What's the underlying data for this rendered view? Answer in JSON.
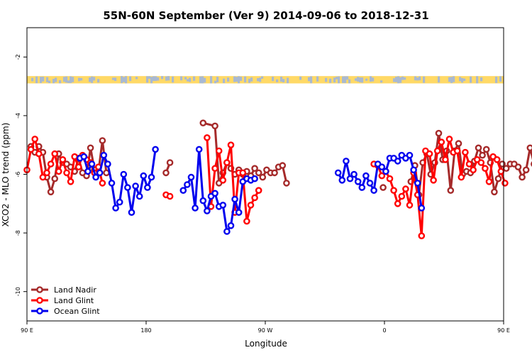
{
  "chart_data": {
    "type": "line",
    "title": "55N-60N September (Ver 9)   2014-09-06 to 2018-12-31",
    "xlabel": "Longitude",
    "ylabel": "XCO2 - MLO trend (ppm)",
    "xlim": [
      90,
      450
    ],
    "ylim": [
      -11,
      -1
    ],
    "x_ticks": [
      {
        "value": 90,
        "label": "90 E"
      },
      {
        "value": 180,
        "label": "180"
      },
      {
        "value": 270,
        "label": "90 W"
      },
      {
        "value": 360,
        "label": "0"
      },
      {
        "value": 450,
        "label": "90 E"
      },
      {
        "value": 540,
        "label": "180"
      }
    ],
    "y_ticks": [
      {
        "value": -2,
        "label": "-2"
      },
      {
        "value": -4,
        "label": "-4"
      },
      {
        "value": -6,
        "label": "-6"
      },
      {
        "value": -8,
        "label": "-8"
      },
      {
        "value": -10,
        "label": "-10"
      }
    ],
    "legend_position": "bottom-left",
    "grid": false,
    "map_strip": {
      "y_top": -2.65,
      "y_bottom": -2.9,
      "land_color": "#ffd966",
      "ocean_color": "#a9b9d1"
    },
    "series": [
      {
        "name": "Land Nadir",
        "color": "#a52a2a",
        "segments": [
          [
            [
              93,
              -5.05
            ],
            [
              96,
              -5.25
            ],
            [
              99,
              -5.05
            ],
            [
              102,
              -5.25
            ],
            [
              105,
              -6.1
            ],
            [
              108,
              -6.6
            ],
            [
              111,
              -6.15
            ],
            [
              114,
              -5.3
            ],
            [
              117,
              -5.6
            ],
            [
              120,
              -5.65
            ],
            [
              123,
              -5.75
            ],
            [
              126,
              -5.9
            ],
            [
              129,
              -5.45
            ],
            [
              132,
              -5.95
            ],
            [
              135,
              -6.05
            ],
            [
              138,
              -5.1
            ],
            [
              141,
              -5.85
            ],
            [
              144,
              -5.9
            ],
            [
              147,
              -4.85
            ],
            [
              150,
              -5.95
            ]
          ],
          [
            [
              195,
              -5.95
            ],
            [
              198,
              -5.6
            ]
          ],
          [
            [
              223,
              -4.25
            ],
            [
              232,
              -4.35
            ],
            [
              235,
              -6.3
            ],
            [
              238,
              -5.95
            ],
            [
              241,
              -5.6
            ],
            [
              244,
              -5.8
            ],
            [
              247,
              -6.0
            ],
            [
              250,
              -5.85
            ],
            [
              253,
              -6.0
            ],
            [
              256,
              -5.9
            ],
            [
              259,
              -6.05
            ],
            [
              262,
              -5.8
            ],
            [
              265,
              -5.95
            ],
            [
              268,
              -6.1
            ],
            [
              271,
              -5.85
            ],
            [
              274,
              -5.95
            ],
            [
              277,
              -5.95
            ],
            [
              280,
              -5.75
            ],
            [
              283,
              -5.7
            ],
            [
              286,
              -6.3
            ]
          ],
          [
            [
              359,
              -6.45
            ]
          ],
          [
            [
              380,
              -6.25
            ],
            [
              383,
              -5.7
            ],
            [
              386,
              -6.7
            ],
            [
              389,
              -5.6
            ],
            [
              392,
              -5.3
            ],
            [
              395,
              -6.0
            ],
            [
              398,
              -5.6
            ],
            [
              401,
              -4.6
            ],
            [
              404,
              -5.5
            ],
            [
              407,
              -5.2
            ],
            [
              410,
              -6.55
            ],
            [
              413,
              -5.2
            ],
            [
              416,
              -4.95
            ],
            [
              419,
              -6.0
            ],
            [
              422,
              -5.9
            ],
            [
              425,
              -5.95
            ],
            [
              428,
              -5.55
            ],
            [
              431,
              -5.1
            ],
            [
              434,
              -5.35
            ],
            [
              437,
              -5.15
            ],
            [
              440,
              -5.6
            ],
            [
              443,
              -6.6
            ],
            [
              446,
              -6.15
            ],
            [
              449,
              -5.65
            ],
            [
              452,
              -5.8
            ],
            [
              455,
              -5.65
            ],
            [
              458,
              -5.65
            ],
            [
              461,
              -5.75
            ],
            [
              464,
              -6.1
            ],
            [
              467,
              -5.85
            ],
            [
              470,
              -5.1
            ],
            [
              473,
              -5.65
            ],
            [
              476,
              -5.95
            ],
            [
              479,
              -4.85
            ],
            [
              482,
              -6.0
            ]
          ]
        ]
      },
      {
        "name": "Land Glint",
        "color": "#ff0000",
        "segments": [
          [
            [
              90,
              -5.85
            ],
            [
              93,
              -5.15
            ],
            [
              96,
              -4.8
            ],
            [
              99,
              -5.3
            ],
            [
              102,
              -6.1
            ],
            [
              105,
              -5.95
            ],
            [
              108,
              -5.65
            ],
            [
              111,
              -5.3
            ],
            [
              114,
              -5.9
            ],
            [
              117,
              -5.5
            ],
            [
              120,
              -5.95
            ],
            [
              123,
              -6.25
            ],
            [
              126,
              -5.4
            ],
            [
              129,
              -5.75
            ],
            [
              132,
              -5.35
            ],
            [
              135,
              -5.5
            ],
            [
              138,
              -5.6
            ],
            [
              141,
              -5.95
            ],
            [
              144,
              -5.75
            ],
            [
              147,
              -6.3
            ]
          ],
          [
            [
              195,
              -6.7
            ],
            [
              198,
              -6.75
            ]
          ],
          [
            [
              226,
              -4.75
            ],
            [
              229,
              -7.1
            ],
            [
              232,
              -5.8
            ],
            [
              235,
              -5.2
            ],
            [
              238,
              -6.2
            ],
            [
              241,
              -5.6
            ],
            [
              244,
              -5.0
            ],
            [
              247,
              -7.3
            ],
            [
              250,
              -5.95
            ],
            [
              253,
              -5.95
            ],
            [
              256,
              -7.6
            ],
            [
              259,
              -7.05
            ],
            [
              262,
              -6.8
            ],
            [
              265,
              -6.55
            ]
          ],
          [
            [
              352,
              -5.65
            ],
            [
              355,
              -5.7
            ],
            [
              358,
              -6.05
            ],
            [
              361,
              -5.9
            ],
            [
              364,
              -6.15
            ],
            [
              367,
              -6.55
            ],
            [
              370,
              -7.0
            ],
            [
              373,
              -6.75
            ],
            [
              376,
              -6.5
            ],
            [
              379,
              -7.05
            ],
            [
              382,
              -5.95
            ],
            [
              385,
              -6.7
            ],
            [
              388,
              -8.1
            ],
            [
              391,
              -5.2
            ],
            [
              394,
              -5.3
            ],
            [
              397,
              -6.2
            ],
            [
              400,
              -5.2
            ],
            [
              403,
              -4.9
            ],
            [
              406,
              -5.5
            ],
            [
              409,
              -4.8
            ],
            [
              412,
              -5.25
            ],
            [
              415,
              -5.2
            ],
            [
              418,
              -6.1
            ],
            [
              421,
              -5.25
            ],
            [
              424,
              -5.65
            ],
            [
              427,
              -5.85
            ],
            [
              430,
              -5.5
            ],
            [
              433,
              -5.6
            ],
            [
              436,
              -5.8
            ],
            [
              439,
              -6.25
            ],
            [
              442,
              -5.4
            ],
            [
              445,
              -5.5
            ],
            [
              448,
              -5.9
            ],
            [
              451,
              -6.3
            ]
          ]
        ]
      },
      {
        "name": "Ocean Glint",
        "color": "#0000ee",
        "segments": [
          [
            [
              130,
              -5.45
            ],
            [
              133,
              -5.4
            ],
            [
              136,
              -5.9
            ],
            [
              139,
              -5.65
            ],
            [
              142,
              -6.1
            ],
            [
              145,
              -5.95
            ],
            [
              148,
              -5.35
            ],
            [
              151,
              -5.65
            ],
            [
              154,
              -6.3
            ],
            [
              157,
              -7.15
            ],
            [
              160,
              -6.95
            ],
            [
              163,
              -6.0
            ],
            [
              166,
              -6.45
            ],
            [
              169,
              -7.3
            ],
            [
              172,
              -6.4
            ],
            [
              175,
              -6.75
            ],
            [
              178,
              -6.05
            ],
            [
              181,
              -6.45
            ],
            [
              184,
              -6.1
            ],
            [
              187,
              -5.15
            ]
          ],
          [
            [
              208,
              -6.55
            ],
            [
              211,
              -6.35
            ],
            [
              214,
              -6.1
            ],
            [
              217,
              -7.15
            ],
            [
              220,
              -5.15
            ],
            [
              223,
              -6.9
            ],
            [
              226,
              -7.25
            ],
            [
              229,
              -6.75
            ],
            [
              232,
              -6.65
            ],
            [
              235,
              -7.1
            ],
            [
              238,
              -7.05
            ],
            [
              241,
              -7.95
            ],
            [
              244,
              -7.75
            ],
            [
              247,
              -6.85
            ],
            [
              250,
              -7.3
            ],
            [
              253,
              -6.25
            ],
            [
              256,
              -6.15
            ],
            [
              259,
              -6.2
            ],
            [
              262,
              -6.15
            ]
          ],
          [
            [
              325,
              -5.95
            ],
            [
              328,
              -6.2
            ],
            [
              331,
              -5.55
            ],
            [
              334,
              -6.15
            ],
            [
              337,
              -6.0
            ],
            [
              340,
              -6.25
            ],
            [
              343,
              -6.45
            ],
            [
              346,
              -6.05
            ],
            [
              349,
              -6.3
            ],
            [
              352,
              -6.55
            ],
            [
              355,
              -5.65
            ],
            [
              358,
              -5.75
            ],
            [
              361,
              -5.9
            ],
            [
              364,
              -5.45
            ],
            [
              367,
              -5.45
            ],
            [
              370,
              -5.55
            ],
            [
              373,
              -5.35
            ],
            [
              376,
              -5.45
            ],
            [
              379,
              -5.35
            ],
            [
              382,
              -5.85
            ],
            [
              385,
              -6.3
            ],
            [
              388,
              -7.15
            ]
          ]
        ]
      }
    ]
  }
}
